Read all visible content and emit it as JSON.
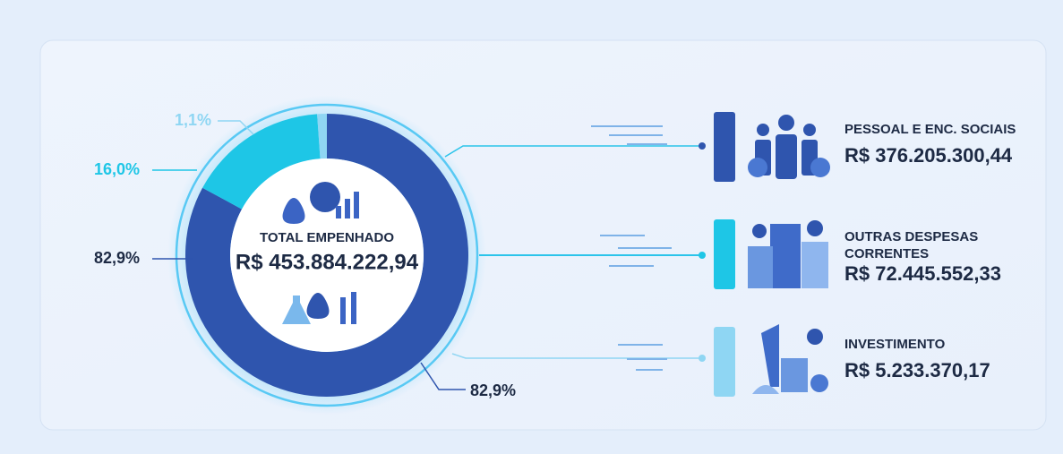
{
  "chart_data": {
    "type": "pie",
    "donut": true,
    "categories": [
      "PESSOAL E ENC. SOCIAIS",
      "OUTRAS DESPESAS CORRENTES",
      "INVESTIMENTO"
    ],
    "values": [
      82.9,
      16.0,
      1.1
    ],
    "value_labels": [
      "82,9%",
      "16,0%",
      "1,1%"
    ],
    "colors": [
      "#2f55ae",
      "#1ec6e6",
      "#8fd6f3"
    ],
    "amount_labels": [
      "R$ 376.205.300,44",
      "R$ 72.445.552,33",
      "R$ 5.233.370,17"
    ],
    "center_label": "TOTAL EMPENHADO",
    "center_value": "R$ 453.884.222,94"
  }
}
